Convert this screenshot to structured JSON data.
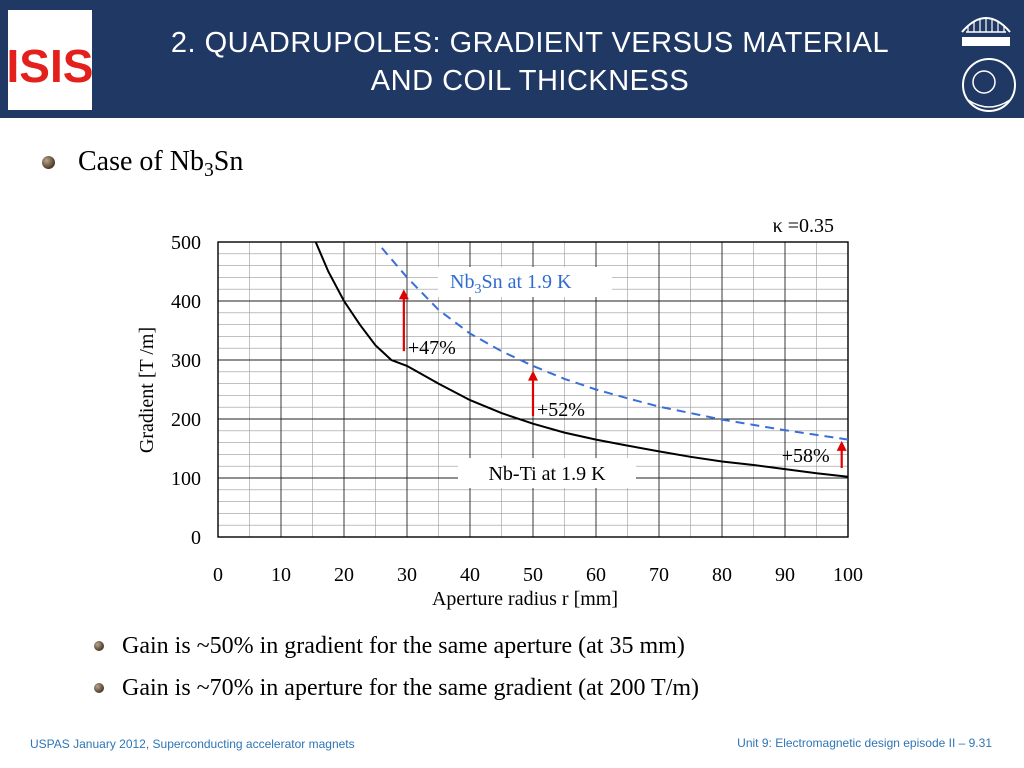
{
  "header": {
    "title_line1": "2. Quadrupoles: gradient versus material",
    "title_line2": "and coil thickness",
    "logo_left_text": "ISIS",
    "bg_color": "#1f3864"
  },
  "bullet_main": {
    "prefix": "Case of Nb",
    "sub": "3",
    "suffix": "Sn"
  },
  "chart_data": {
    "type": "line",
    "xlabel": "Aperture radius r [mm]",
    "ylabel": "Gradient [T /m]",
    "xlim": [
      0,
      100
    ],
    "ylim": [
      0,
      500
    ],
    "xticks": [
      "0",
      "10",
      "20",
      "30",
      "40",
      "50",
      "60",
      "70",
      "80",
      "90",
      "100"
    ],
    "yticks": [
      "0",
      "100",
      "200",
      "300",
      "400",
      "500"
    ],
    "grid": true,
    "kappa_label": "κ =0.35",
    "series": [
      {
        "name": "Nb-Ti at 1.9 K",
        "style": "solid",
        "color": "#000000",
        "x": [
          15.5,
          17.5,
          20,
          22.5,
          25,
          27.5,
          30,
          35,
          40,
          45,
          50,
          55,
          60,
          65,
          70,
          75,
          80,
          85,
          90,
          95,
          100
        ],
        "y": [
          500,
          450,
          400,
          360,
          325,
          300,
          290,
          260,
          232,
          210,
          192,
          177,
          165,
          155,
          145,
          136,
          128,
          122,
          115,
          108,
          102
        ]
      },
      {
        "name": "Nb3Sn at 1.9 K",
        "style": "dashed",
        "color": "#3a6fd8",
        "x": [
          26,
          30,
          35,
          40,
          45,
          50,
          55,
          60,
          65,
          70,
          75,
          80,
          85,
          90,
          95,
          100
        ],
        "y": [
          490,
          440,
          385,
          345,
          315,
          290,
          268,
          250,
          235,
          221,
          210,
          199,
          190,
          181,
          173,
          165
        ]
      }
    ],
    "labels": {
      "nb3sn_prefix": "Nb",
      "nb3sn_sub": "3",
      "nb3sn_suffix": "Sn at 1.9 K",
      "nbti": "Nb-Ti at 1.9 K"
    },
    "annotations": [
      {
        "text": "+47%",
        "x": 29.5,
        "y_from": 315,
        "y_to": 420
      },
      {
        "text": "+52%",
        "x": 50,
        "y_from": 205,
        "y_to": 282
      },
      {
        "text": "+58%",
        "x": 99,
        "y_from": 117,
        "y_to": 163
      }
    ]
  },
  "sub_bullets": [
    "Gain is ~50% in gradient for the same aperture (at 35 mm)",
    "Gain is ~70% in aperture for the same gradient (at 200 T/m)"
  ],
  "footer": {
    "left": "USPAS January 2012,  Superconducting accelerator magnets",
    "right": "Unit 9: Electromagnetic design episode II – 9.31"
  }
}
